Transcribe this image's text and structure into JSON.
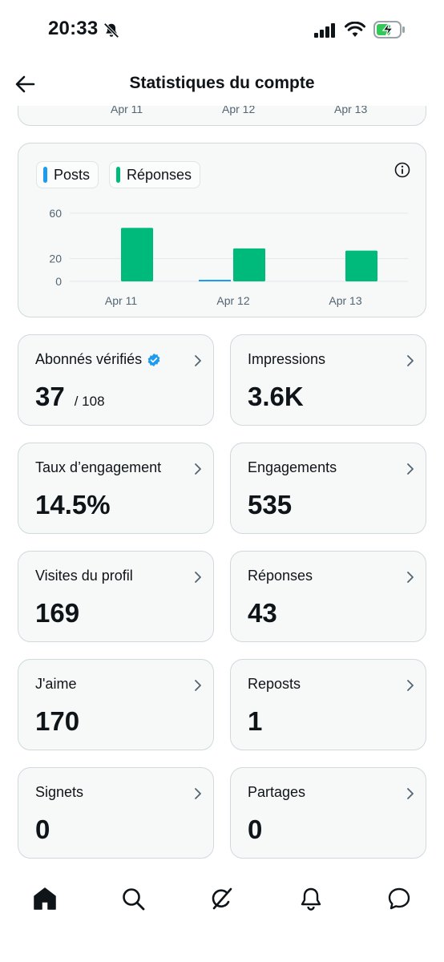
{
  "status_bar": {
    "time": "20:33"
  },
  "header": {
    "title": "Statistiques du compte"
  },
  "prev_card": {
    "labels": [
      "Apr 11",
      "Apr 12",
      "Apr 13"
    ]
  },
  "chart": {
    "legend": [
      {
        "label": "Posts",
        "color": "#1d9bf0"
      },
      {
        "label": "Réponses",
        "color": "#00ba7c"
      }
    ]
  },
  "chart_data": {
    "type": "bar",
    "categories": [
      "Apr 11",
      "Apr 12",
      "Apr 13"
    ],
    "series": [
      {
        "name": "Posts",
        "color": "#1d9bf0",
        "values": [
          0,
          1,
          0
        ]
      },
      {
        "name": "Réponses",
        "color": "#00ba7c",
        "values": [
          47,
          29,
          27
        ]
      }
    ],
    "yticks": [
      0,
      20,
      60
    ],
    "ylim": [
      0,
      62
    ],
    "legend": "top-left",
    "grid": true
  },
  "stats": [
    {
      "label": "Abonnés vérifiés",
      "value": "37",
      "sub": "/ 108",
      "verified": true
    },
    {
      "label": "Impressions",
      "value": "3.6K"
    },
    {
      "label": "Taux d’engagement",
      "value": "14.5%"
    },
    {
      "label": "Engagements",
      "value": "535"
    },
    {
      "label": "Visites du profil",
      "value": "169"
    },
    {
      "label": "Réponses",
      "value": "43"
    },
    {
      "label": "J'aime",
      "value": "170"
    },
    {
      "label": "Reposts",
      "value": "1"
    },
    {
      "label": "Signets",
      "value": "0"
    },
    {
      "label": "Partages",
      "value": "0"
    }
  ],
  "tabs": [
    {
      "icon": "home-icon",
      "active": true
    },
    {
      "icon": "search-icon"
    },
    {
      "icon": "grok-icon"
    },
    {
      "icon": "bell-icon"
    },
    {
      "icon": "messages-icon"
    }
  ]
}
